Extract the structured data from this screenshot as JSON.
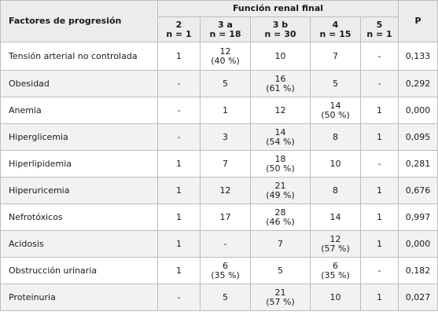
{
  "table": {
    "header_factor": "Factores de progresión",
    "header_group": "Función renal final",
    "header_p": "P",
    "stages": [
      {
        "stage": "2",
        "n": "n = 1"
      },
      {
        "stage": "3 a",
        "n": "n = 18"
      },
      {
        "stage": "3 b",
        "n": "n = 30"
      },
      {
        "stage": "4",
        "n": "n = 15"
      },
      {
        "stage": "5",
        "n": "n = 1"
      }
    ],
    "rows": [
      {
        "factor": "Tensión arterial no controlada",
        "c2": [
          "1"
        ],
        "c3a": [
          "12",
          "(40 %)"
        ],
        "c3b": [
          "10"
        ],
        "c4": [
          "7"
        ],
        "c5": [
          "-"
        ],
        "p": "0,133"
      },
      {
        "factor": "Obesidad",
        "c2": [
          "-"
        ],
        "c3a": [
          "5"
        ],
        "c3b": [
          "16",
          "(61 %)"
        ],
        "c4": [
          "5"
        ],
        "c5": [
          "-"
        ],
        "p": "0,292"
      },
      {
        "factor": "Anemia",
        "c2": [
          "-"
        ],
        "c3a": [
          "1"
        ],
        "c3b": [
          "12"
        ],
        "c4": [
          "14",
          "(50 %)"
        ],
        "c5": [
          "1"
        ],
        "p": "0,000"
      },
      {
        "factor": "Hiperglicemia",
        "c2": [
          "-"
        ],
        "c3a": [
          "3"
        ],
        "c3b": [
          "14",
          "(54 %)"
        ],
        "c4": [
          "8"
        ],
        "c5": [
          "1"
        ],
        "p": "0,095"
      },
      {
        "factor": "Hiperlipidemia",
        "c2": [
          "1"
        ],
        "c3a": [
          "7"
        ],
        "c3b": [
          "18",
          "(50 %)"
        ],
        "c4": [
          "10"
        ],
        "c5": [
          "-"
        ],
        "p": "0,281"
      },
      {
        "factor": "Hiperuricemia",
        "c2": [
          "1"
        ],
        "c3a": [
          "12"
        ],
        "c3b": [
          "21",
          "(49 %)"
        ],
        "c4": [
          "8"
        ],
        "c5": [
          "1"
        ],
        "p": "0,676"
      },
      {
        "factor": "Nefrotóxicos",
        "c2": [
          "1"
        ],
        "c3a": [
          "17"
        ],
        "c3b": [
          "28",
          "(46 %)"
        ],
        "c4": [
          "14"
        ],
        "c5": [
          "1"
        ],
        "p": "0,997"
      },
      {
        "factor": "Acidosis",
        "c2": [
          "1"
        ],
        "c3a": [
          "-"
        ],
        "c3b": [
          "7"
        ],
        "c4": [
          "12",
          "(57 %)"
        ],
        "c5": [
          "1"
        ],
        "p": "0,000"
      },
      {
        "factor": "Obstrucción urinaria",
        "c2": [
          "1"
        ],
        "c3a": [
          "6",
          "(35 %)"
        ],
        "c3b": [
          "5"
        ],
        "c4": [
          "6",
          "(35 %)"
        ],
        "c5": [
          "-"
        ],
        "p": "0,182"
      },
      {
        "factor": "Proteinuria",
        "c2": [
          "-"
        ],
        "c3a": [
          "5"
        ],
        "c3b": [
          "21",
          "(57 %)"
        ],
        "c4": [
          "10"
        ],
        "c5": [
          "1"
        ],
        "p": "0,027"
      }
    ]
  }
}
